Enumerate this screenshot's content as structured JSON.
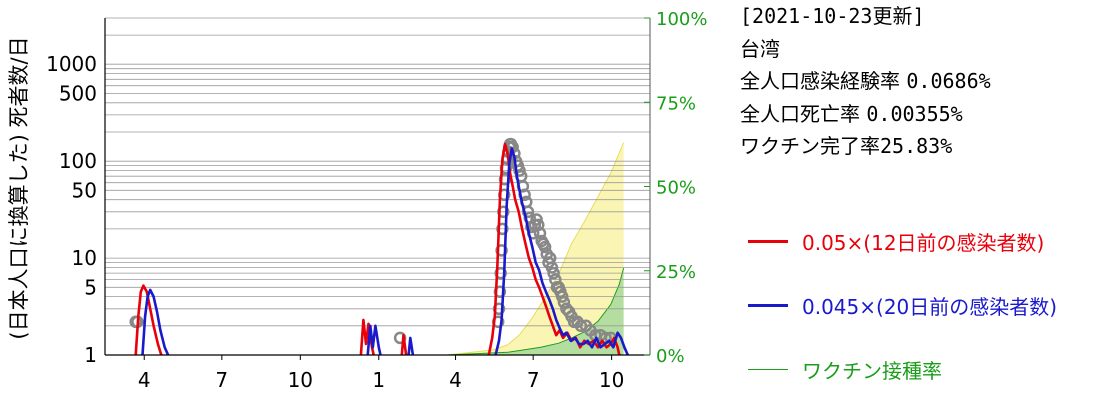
{
  "info": {
    "update": "[2021-10-23更新]",
    "region": "台湾",
    "infection_rate_label": "全人口感染経験率",
    "infection_rate_value": "0.0686%",
    "death_rate_label": "全人口死亡率",
    "death_rate_value": "0.00355%",
    "vaccine_label": "ワクチン完了率",
    "vaccine_value": "25.83%"
  },
  "colors": {
    "series_12d": "#e8000b",
    "series_20d": "#1a1acc",
    "vaccine": "#1a9e1a",
    "fill_light": "#fbf5b4",
    "fill_green": "#b4dea0",
    "circles": "#888888",
    "right_axis": "#1a9e1a"
  },
  "chart_data": {
    "type": "line",
    "ylabel": "(日本人口に換算した) 死者数/日",
    "y_scale": "log",
    "ylim": [
      1,
      3000
    ],
    "y_ticks": [
      1,
      5,
      10,
      50,
      100,
      500,
      1000
    ],
    "y_tick_labels": [
      "1",
      "5",
      "10",
      "50",
      "100",
      "500",
      "1000"
    ],
    "right_ylim": [
      0,
      100
    ],
    "right_ticks": [
      0,
      25,
      50,
      75,
      100
    ],
    "right_tick_labels": [
      "0%",
      "25%",
      "50%",
      "75%",
      "100%"
    ],
    "xlim": [
      "2020-02-15",
      "2021-11-15"
    ],
    "x_ticks": [
      "2020-04-01",
      "2020-07-01",
      "2020-10-01",
      "2021-01-01",
      "2021-04-01",
      "2021-07-01",
      "2021-10-01"
    ],
    "x_tick_labels": [
      "4",
      "7",
      "10",
      "1",
      "4",
      "7",
      "10"
    ],
    "grid": true,
    "legend_position": "right",
    "series": [
      {
        "name": "0.05×(12日前の感染者数)",
        "type": "line",
        "points": [
          [
            "2020-03-22",
            1
          ],
          [
            "2020-03-25",
            2.5
          ],
          [
            "2020-03-28",
            4.5
          ],
          [
            "2020-03-31",
            5.2
          ],
          [
            "2020-04-04",
            4.5
          ],
          [
            "2020-04-08",
            3
          ],
          [
            "2020-04-12",
            2
          ],
          [
            "2020-04-17",
            1.3
          ],
          [
            "2020-04-21",
            1
          ],
          [
            "2020-12-11",
            1
          ],
          [
            "2020-12-14",
            2.3
          ],
          [
            "2020-12-17",
            1.3
          ],
          [
            "2020-12-20",
            2.1
          ],
          [
            "2020-12-24",
            1.2
          ],
          [
            "2020-12-26",
            1
          ],
          [
            "2021-01-28",
            1
          ],
          [
            "2021-01-30",
            1.6
          ],
          [
            "2021-02-02",
            1
          ],
          [
            "2021-05-10",
            1
          ],
          [
            "2021-05-14",
            1.5
          ],
          [
            "2021-05-17",
            2.5
          ],
          [
            "2021-05-20",
            8
          ],
          [
            "2021-05-23",
            40
          ],
          [
            "2021-05-26",
            105
          ],
          [
            "2021-05-29",
            150
          ],
          [
            "2021-06-01",
            120
          ],
          [
            "2021-06-04",
            75
          ],
          [
            "2021-06-07",
            55
          ],
          [
            "2021-06-10",
            40
          ],
          [
            "2021-06-14",
            30
          ],
          [
            "2021-06-18",
            20
          ],
          [
            "2021-06-22",
            14
          ],
          [
            "2021-06-26",
            10
          ],
          [
            "2021-06-30",
            8
          ],
          [
            "2021-07-04",
            6
          ],
          [
            "2021-07-08",
            5
          ],
          [
            "2021-07-12",
            4
          ],
          [
            "2021-07-16",
            3.2
          ],
          [
            "2021-07-20",
            2.5
          ],
          [
            "2021-07-24",
            2
          ],
          [
            "2021-07-28",
            1.6
          ],
          [
            "2021-08-01",
            1.8
          ],
          [
            "2021-08-05",
            1.5
          ],
          [
            "2021-08-10",
            1.7
          ],
          [
            "2021-08-15",
            1.4
          ],
          [
            "2021-08-20",
            1.5
          ],
          [
            "2021-08-25",
            1.2
          ],
          [
            "2021-08-30",
            1.4
          ],
          [
            "2021-09-04",
            1.3
          ],
          [
            "2021-09-10",
            1.4
          ],
          [
            "2021-09-15",
            1.2
          ],
          [
            "2021-09-20",
            1.4
          ],
          [
            "2021-09-25",
            1.2
          ],
          [
            "2021-09-30",
            1.3
          ],
          [
            "2021-10-04",
            1.5
          ],
          [
            "2021-10-08",
            1.2
          ],
          [
            "2021-10-10",
            1
          ]
        ]
      },
      {
        "name": "0.045×(20日前の感染者数)",
        "type": "line",
        "points": [
          [
            "2020-03-30",
            1
          ],
          [
            "2020-04-02",
            2.5
          ],
          [
            "2020-04-05",
            4
          ],
          [
            "2020-04-08",
            4.7
          ],
          [
            "2020-04-12",
            4
          ],
          [
            "2020-04-16",
            2.8
          ],
          [
            "2020-04-20",
            1.8
          ],
          [
            "2020-04-25",
            1.2
          ],
          [
            "2020-04-29",
            1
          ],
          [
            "2020-12-19",
            1
          ],
          [
            "2020-12-22",
            2
          ],
          [
            "2020-12-25",
            1.2
          ],
          [
            "2020-12-28",
            2
          ],
          [
            "2021-01-01",
            1.2
          ],
          [
            "2021-01-03",
            1
          ],
          [
            "2021-02-05",
            1
          ],
          [
            "2021-02-07",
            1.5
          ],
          [
            "2021-02-10",
            1
          ],
          [
            "2021-05-18",
            1
          ],
          [
            "2021-05-22",
            1.4
          ],
          [
            "2021-05-25",
            2.3
          ],
          [
            "2021-05-28",
            7
          ],
          [
            "2021-05-31",
            35
          ],
          [
            "2021-06-03",
            95
          ],
          [
            "2021-06-06",
            135
          ],
          [
            "2021-06-09",
            110
          ],
          [
            "2021-06-12",
            70
          ],
          [
            "2021-06-15",
            50
          ],
          [
            "2021-06-18",
            37
          ],
          [
            "2021-06-22",
            27
          ],
          [
            "2021-06-26",
            18
          ],
          [
            "2021-06-30",
            13
          ],
          [
            "2021-07-04",
            9
          ],
          [
            "2021-07-08",
            7.5
          ],
          [
            "2021-07-12",
            5.5
          ],
          [
            "2021-07-16",
            4.5
          ],
          [
            "2021-07-20",
            3.7
          ],
          [
            "2021-07-24",
            3
          ],
          [
            "2021-07-28",
            2.3
          ],
          [
            "2021-08-01",
            1.9
          ],
          [
            "2021-08-05",
            1.6
          ],
          [
            "2021-08-09",
            1.7
          ],
          [
            "2021-08-14",
            1.4
          ],
          [
            "2021-08-19",
            1.5
          ],
          [
            "2021-08-24",
            1.3
          ],
          [
            "2021-08-29",
            1.3
          ],
          [
            "2021-09-03",
            1.4
          ],
          [
            "2021-09-08",
            1.2
          ],
          [
            "2021-09-13",
            1.5
          ],
          [
            "2021-09-18",
            1.2
          ],
          [
            "2021-09-23",
            1.3
          ],
          [
            "2021-09-28",
            1.4
          ],
          [
            "2021-10-03",
            1.2
          ],
          [
            "2021-10-08",
            1.7
          ],
          [
            "2021-10-12",
            1.5
          ],
          [
            "2021-10-16",
            1.2
          ],
          [
            "2021-10-20",
            1
          ]
        ]
      },
      {
        "name": "ワクチン接種率",
        "type": "area",
        "axis": "right",
        "points": [
          [
            "2021-03-22",
            0
          ],
          [
            "2021-06-01",
            0.8
          ],
          [
            "2021-06-20",
            1.5
          ],
          [
            "2021-07-10",
            2.3
          ],
          [
            "2021-07-31",
            3.5
          ],
          [
            "2021-08-15",
            5
          ],
          [
            "2021-08-31",
            7
          ],
          [
            "2021-09-15",
            10
          ],
          [
            "2021-09-30",
            15
          ],
          [
            "2021-10-10",
            21
          ],
          [
            "2021-10-15",
            25.83
          ]
        ]
      },
      {
        "type": "area",
        "axis": "right",
        "points": [
          [
            "2021-03-22",
            0
          ],
          [
            "2021-05-15",
            1.5
          ],
          [
            "2021-06-01",
            3
          ],
          [
            "2021-06-15",
            6
          ],
          [
            "2021-06-30",
            11
          ],
          [
            "2021-07-15",
            17
          ],
          [
            "2021-07-31",
            24
          ],
          [
            "2021-08-15",
            33
          ],
          [
            "2021-08-31",
            40
          ],
          [
            "2021-09-15",
            47
          ],
          [
            "2021-09-30",
            54
          ],
          [
            "2021-10-10",
            60
          ],
          [
            "2021-10-15",
            63
          ]
        ]
      },
      {
        "type": "scatter",
        "points": [
          [
            "2020-03-22",
            2.2
          ],
          [
            "2020-03-24",
            2.2
          ],
          [
            "2021-01-26",
            1.5
          ],
          [
            "2021-05-21",
            2.2
          ],
          [
            "2021-05-22",
            3
          ],
          [
            "2021-05-23",
            4.5
          ],
          [
            "2021-05-24",
            7
          ],
          [
            "2021-05-25",
            12
          ],
          [
            "2021-05-26",
            20
          ],
          [
            "2021-05-27",
            30
          ],
          [
            "2021-05-28",
            45
          ],
          [
            "2021-05-29",
            65
          ],
          [
            "2021-05-30",
            85
          ],
          [
            "2021-06-01",
            105
          ],
          [
            "2021-06-02",
            125
          ],
          [
            "2021-06-03",
            140
          ],
          [
            "2021-06-04",
            150
          ],
          [
            "2021-06-05",
            150
          ],
          [
            "2021-06-07",
            140
          ],
          [
            "2021-06-09",
            120
          ],
          [
            "2021-06-11",
            100
          ],
          [
            "2021-06-13",
            90
          ],
          [
            "2021-06-15",
            80
          ],
          [
            "2021-06-17",
            70
          ],
          [
            "2021-06-19",
            55
          ],
          [
            "2021-06-21",
            45
          ],
          [
            "2021-06-23",
            38
          ],
          [
            "2021-06-25",
            30
          ],
          [
            "2021-06-27",
            26
          ],
          [
            "2021-06-29",
            21
          ],
          [
            "2021-07-01",
            18
          ],
          [
            "2021-07-03",
            22
          ],
          [
            "2021-07-05",
            25
          ],
          [
            "2021-07-07",
            22
          ],
          [
            "2021-07-09",
            18
          ],
          [
            "2021-07-11",
            15
          ],
          [
            "2021-07-13",
            14
          ],
          [
            "2021-07-15",
            13
          ],
          [
            "2021-07-17",
            11
          ],
          [
            "2021-07-19",
            9
          ],
          [
            "2021-07-21",
            10
          ],
          [
            "2021-07-23",
            8
          ],
          [
            "2021-07-25",
            7
          ],
          [
            "2021-07-27",
            6
          ],
          [
            "2021-07-29",
            5
          ],
          [
            "2021-07-31",
            5
          ],
          [
            "2021-08-02",
            4.5
          ],
          [
            "2021-08-04",
            4
          ],
          [
            "2021-08-06",
            3.5
          ],
          [
            "2021-08-09",
            3
          ],
          [
            "2021-08-12",
            2.8
          ],
          [
            "2021-08-15",
            2.5
          ],
          [
            "2021-08-18",
            2.2
          ],
          [
            "2021-08-22",
            2.2
          ],
          [
            "2021-08-26",
            2
          ],
          [
            "2021-09-01",
            2
          ],
          [
            "2021-09-06",
            1.8
          ],
          [
            "2021-09-12",
            1.6
          ],
          [
            "2021-09-18",
            1.6
          ],
          [
            "2021-09-24",
            1.5
          ],
          [
            "2021-09-30",
            1.5
          ]
        ]
      }
    ]
  }
}
